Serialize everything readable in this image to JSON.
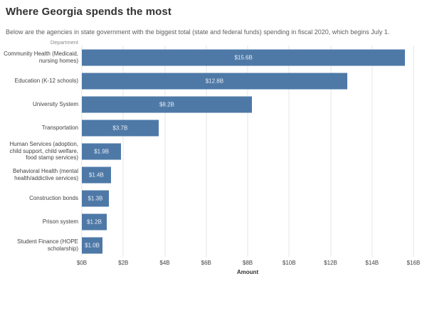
{
  "header": {
    "title": "Where Georgia spends the most",
    "subtitle": "Below are the agencies in state government with the biggest total (state and federal funds) spending in fiscal 2020, which begins July 1."
  },
  "chart_data": {
    "type": "bar",
    "orientation": "horizontal",
    "column_header": "Department",
    "categories": [
      "Community Health (Medicaid,\nnursing homes)",
      "Education (K-12 schools)",
      "University System",
      "Transportation",
      "Human Services (adoption,\nchild support, child welfare,\nfood stamp services)",
      "Behavioral Health (mental\nhealth/addictive services)",
      "Construction bonds",
      "Prison system",
      "Student Finance (HOPE\nscholarship)"
    ],
    "values": [
      15.6,
      12.8,
      8.2,
      3.7,
      1.9,
      1.4,
      1.3,
      1.2,
      1.0
    ],
    "value_labels": [
      "$15.6B",
      "$12.8B",
      "$8.2B",
      "$3.7B",
      "$1.9B",
      "$1.4B",
      "$1.3B",
      "$1.2B",
      "$1.0B"
    ],
    "xlabel": "Amount",
    "x_ticks": [
      "$0B",
      "$2B",
      "$4B",
      "$6B",
      "$8B",
      "$10B",
      "$12B",
      "$14B",
      "$16B"
    ],
    "xlim": [
      0,
      16
    ],
    "bar_color": "#4e79a7",
    "gridline_color": "#e6e6e6",
    "grid": true,
    "legend": false
  }
}
